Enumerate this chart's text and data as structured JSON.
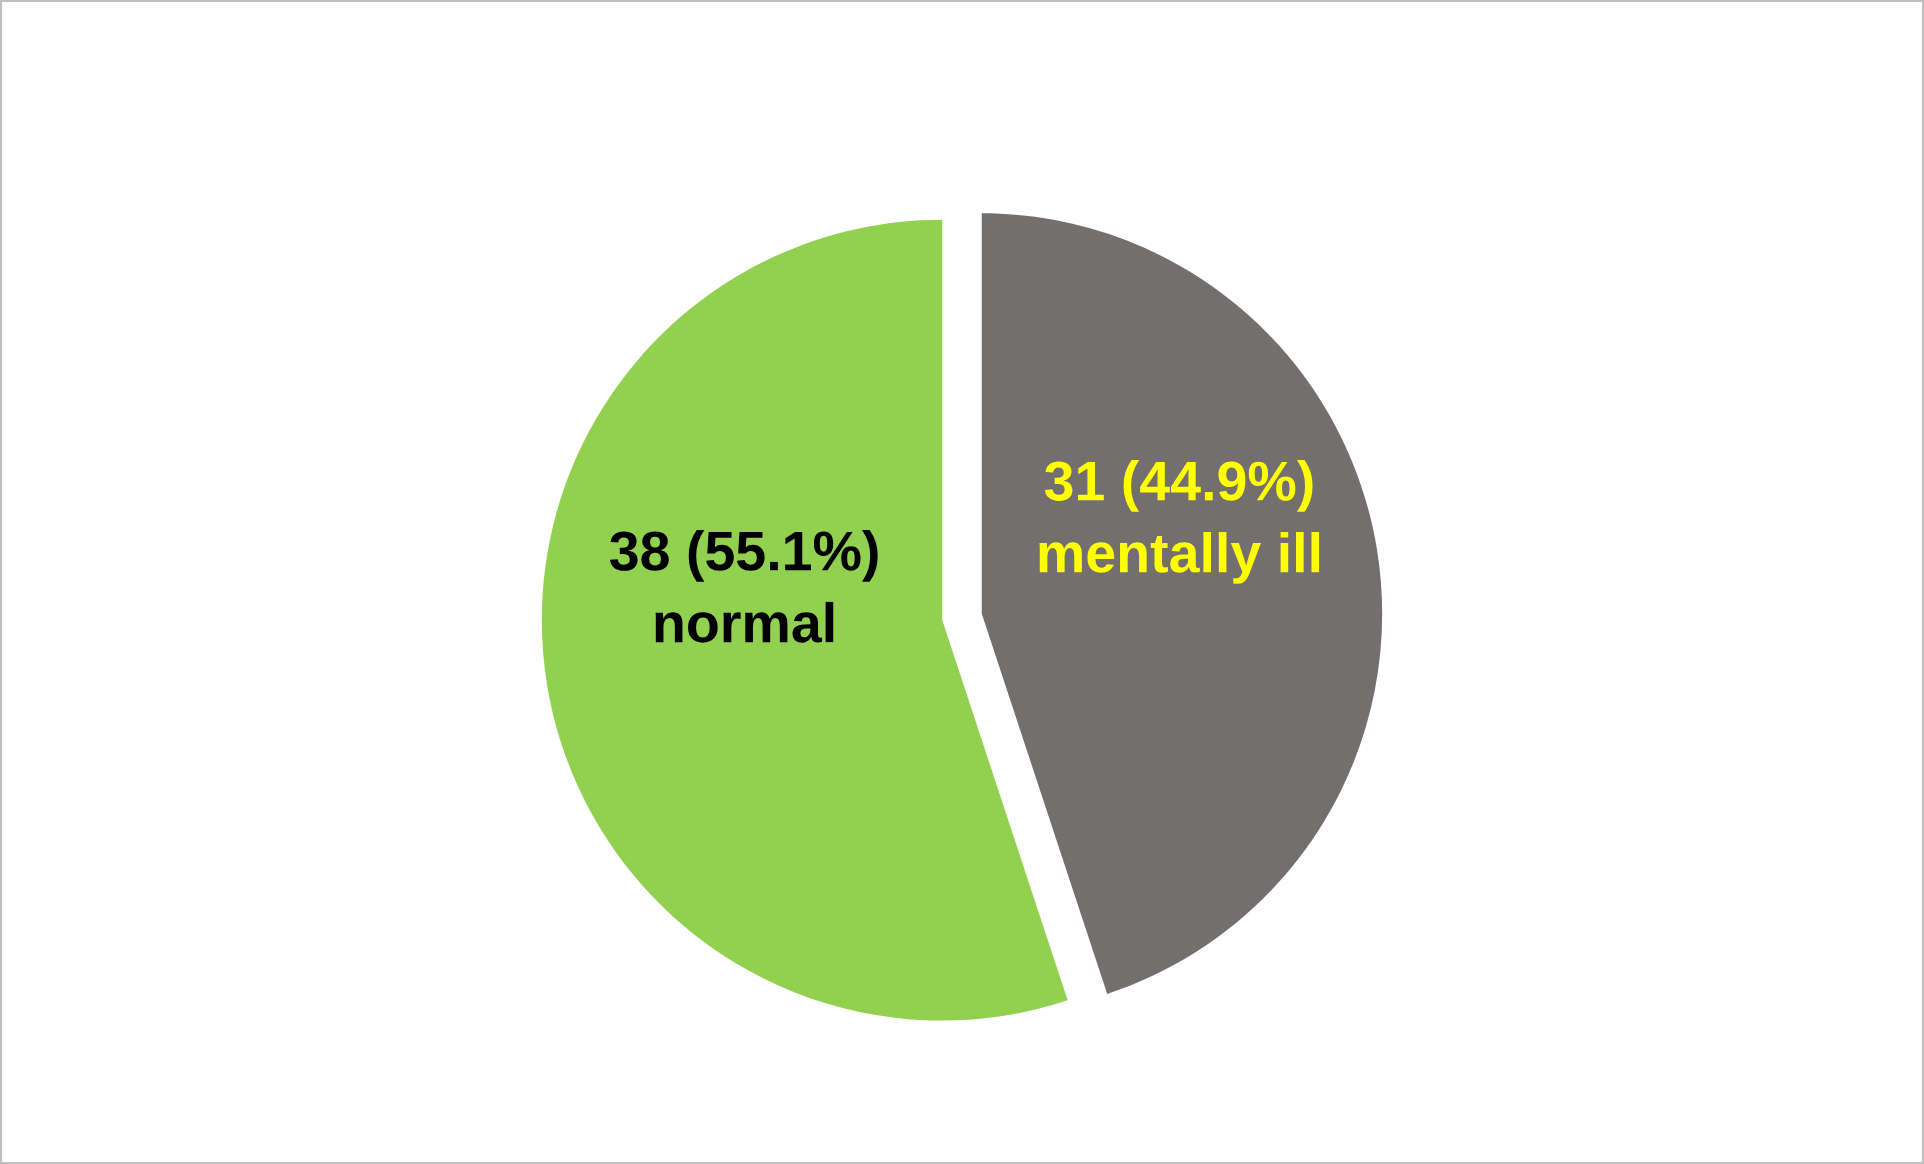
{
  "chart_data": {
    "type": "pie",
    "categories": [
      "mentally ill",
      "normal"
    ],
    "values": [
      31,
      38
    ],
    "value_labels": [
      "31 (44.9%)",
      "38 (55.1%)"
    ],
    "colors": [
      "#736f6e",
      "#92d050"
    ],
    "legend": false
  }
}
